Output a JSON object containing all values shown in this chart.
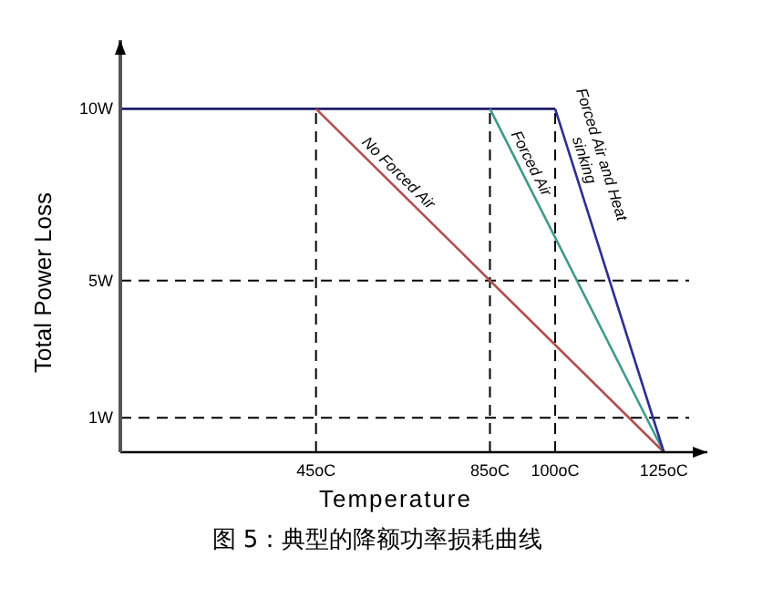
{
  "chart_data": {
    "type": "line",
    "xlabel": "Temperature",
    "ylabel": "Total Power Loss",
    "xlim": [
      0,
      135
    ],
    "ylim": [
      0,
      12
    ],
    "xticks": [
      {
        "value": 45,
        "label": "45oC"
      },
      {
        "value": 85,
        "label": "85oC"
      },
      {
        "value": 100,
        "label": "100oC"
      },
      {
        "value": 125,
        "label": "125oC"
      }
    ],
    "yticks": [
      {
        "value": 1,
        "label": "1W"
      },
      {
        "value": 5,
        "label": "5W"
      },
      {
        "value": 10,
        "label": "10W"
      }
    ],
    "marker": "none",
    "line_style": "solid",
    "series": [
      {
        "color": "#1c1c6a",
        "x": [
          0,
          100
        ],
        "values": [
          10,
          10
        ]
      },
      {
        "color": "#b05050",
        "x": [
          45,
          125
        ],
        "values": [
          10,
          0
        ]
      },
      {
        "color": "#3f9a8a",
        "x": [
          85,
          125
        ],
        "values": [
          10,
          0
        ]
      },
      {
        "color": "#2e2e90",
        "x": [
          100,
          125
        ],
        "values": [
          10,
          0
        ]
      }
    ],
    "ref_lines": [
      {
        "axis": "y",
        "value": 5,
        "line_style": "dashed",
        "color": "#000000"
      },
      {
        "axis": "y",
        "value": 1,
        "line_style": "dashed",
        "color": "#000000"
      },
      {
        "axis": "x",
        "value": 45,
        "line_style": "dashed",
        "color": "#000000"
      },
      {
        "axis": "x",
        "value": 85,
        "line_style": "dashed",
        "color": "#000000"
      },
      {
        "axis": "x",
        "value": 100,
        "line_style": "dashed",
        "color": "#000000"
      }
    ],
    "annotations": [
      {
        "text": "No Forced Air",
        "x": 62,
        "y": 7.875
      },
      {
        "text": "Forced Air",
        "x": 92,
        "y": 8.25
      },
      {
        "text": "Forced Air and Heat sinking",
        "x": 104,
        "y": 8.4
      },
      "图 5：典型的降额功率损耗曲线"
    ]
  }
}
